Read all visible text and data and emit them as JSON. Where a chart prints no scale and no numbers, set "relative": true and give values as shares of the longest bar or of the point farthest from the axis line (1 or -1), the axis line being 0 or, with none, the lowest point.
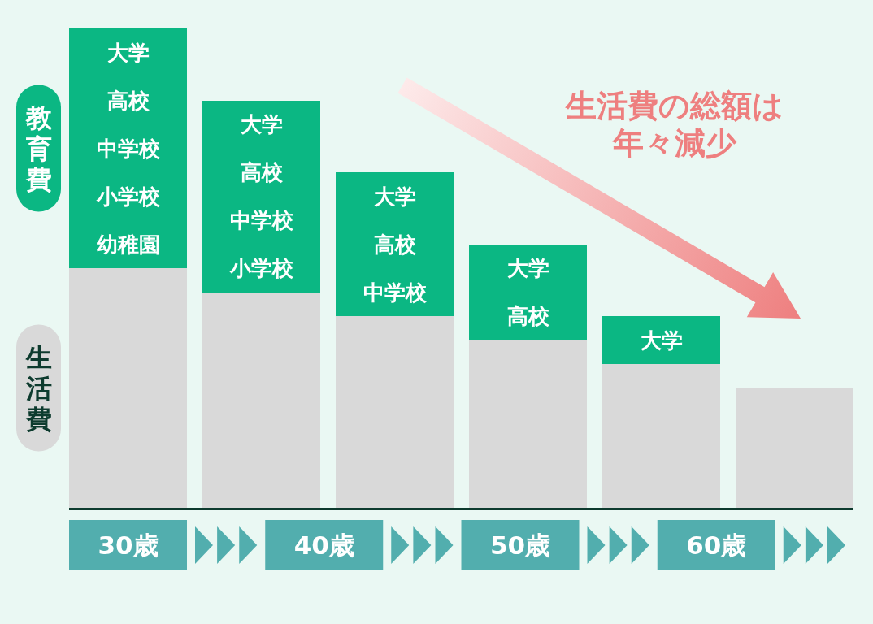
{
  "chart_data": {
    "type": "bar",
    "stacked": true,
    "relative": true,
    "categories": [
      null,
      null,
      null,
      null,
      null,
      null
    ],
    "series": [
      {
        "name": "生活費",
        "color": "#d9d9d9",
        "values": [
          0.5,
          0.45,
          0.4,
          0.35,
          0.3,
          0.25
        ]
      },
      {
        "name": "幼稚園",
        "color": "#0bb783",
        "values": [
          0.1,
          null,
          null,
          null,
          null,
          null
        ]
      },
      {
        "name": "小学校",
        "color": "#0bb783",
        "values": [
          0.1,
          0.1,
          null,
          null,
          null,
          null
        ]
      },
      {
        "name": "中学校",
        "color": "#0bb783",
        "values": [
          0.1,
          0.1,
          0.1,
          null,
          null,
          null
        ]
      },
      {
        "name": "高校",
        "color": "#0bb783",
        "values": [
          0.1,
          0.1,
          0.1,
          0.1,
          null,
          null
        ]
      },
      {
        "name": "大学",
        "color": "#0bb783",
        "values": [
          0.1,
          0.1,
          0.1,
          0.1,
          0.1,
          null
        ]
      }
    ],
    "annotations": [
      "教育費",
      "生活費の総額は年々減少",
      "30歳",
      "40歳",
      "50歳",
      "60歳"
    ]
  }
}
